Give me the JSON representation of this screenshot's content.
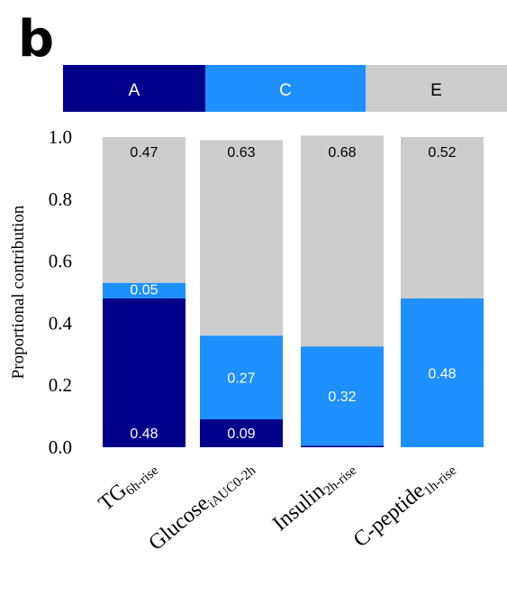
{
  "panel_label": "b",
  "chart_data": {
    "type": "bar",
    "stacked": true,
    "categories": [
      {
        "main": "TG",
        "sub": "6h-rise"
      },
      {
        "main": "Glucose",
        "sub": "iAUC0-2h"
      },
      {
        "main": "Insulin",
        "sub": "2h-rise"
      },
      {
        "main": "C-peptide",
        "sub": "1h-rise"
      }
    ],
    "series": [
      {
        "name": "A",
        "color": "#00008b",
        "text_color": "#ffffff",
        "values": [
          0.48,
          0.09,
          0.005,
          0.0
        ],
        "labels": [
          "0.48",
          "0.09",
          "",
          ""
        ]
      },
      {
        "name": "C",
        "color": "#1e90ff",
        "text_color": "#ffffff",
        "values": [
          0.05,
          0.27,
          0.32,
          0.48
        ],
        "labels": [
          "0.05",
          "0.27",
          "0.32",
          "0.48"
        ]
      },
      {
        "name": "E",
        "color": "#cccccc",
        "text_color": "#000000",
        "values": [
          0.47,
          0.63,
          0.68,
          0.52
        ],
        "labels": [
          "0.47",
          "0.63",
          "0.68",
          "0.52"
        ]
      }
    ],
    "ylabel": "Proportional contribution",
    "ylim": [
      0,
      1.0
    ],
    "yticks": [
      "0.0",
      "0.2",
      "0.4",
      "0.6",
      "0.8",
      "1.0"
    ],
    "legend_position": "top",
    "grid": false
  }
}
